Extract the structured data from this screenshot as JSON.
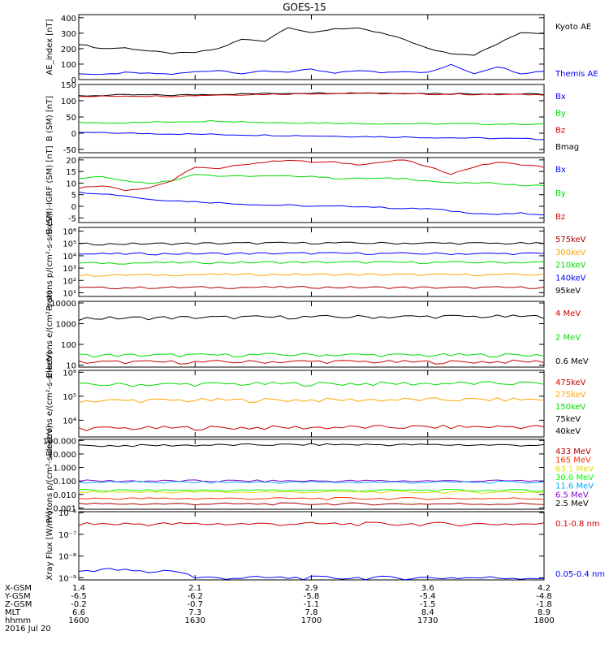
{
  "title": "GOES-15",
  "colors": {
    "black": "#000000",
    "blue": "#0000ff",
    "green": "#00dd00",
    "red": "#cc0000",
    "orange": "#ffa500",
    "cyan": "#00aaff",
    "purple": "#8800cc",
    "yellow": "#dddd00",
    "lime": "#00ff00",
    "darkred": "#aa0000"
  },
  "chart_data": [
    {
      "type": "line",
      "ylabel": "AE_index [nT]",
      "ylim": [
        0,
        420
      ],
      "yticks": [
        "400",
        "300",
        "200",
        "100",
        "0"
      ],
      "legend": [
        "Kyoto AE",
        "Themis AE"
      ],
      "x": [
        0,
        0.05,
        0.1,
        0.15,
        0.2,
        0.25,
        0.3,
        0.35,
        0.4,
        0.45,
        0.5,
        0.55,
        0.6,
        0.65,
        0.7,
        0.75,
        0.8,
        0.85,
        0.9,
        0.95,
        1.0
      ],
      "series": [
        {
          "name": "Kyoto AE",
          "color": "#000000",
          "values": [
            230,
            200,
            205,
            185,
            170,
            175,
            200,
            260,
            250,
            340,
            300,
            330,
            330,
            300,
            260,
            200,
            170,
            160,
            230,
            305,
            300
          ]
        },
        {
          "name": "Themis AE",
          "color": "#0000ff",
          "values": [
            40,
            30,
            45,
            40,
            35,
            50,
            60,
            40,
            55,
            50,
            65,
            40,
            60,
            45,
            55,
            45,
            95,
            40,
            85,
            40,
            55
          ]
        }
      ]
    },
    {
      "type": "line",
      "ylabel": "B (SM) [nT]",
      "ylim": [
        -60,
        150
      ],
      "yticks": [
        "150",
        "100",
        "50",
        "0",
        "-50"
      ],
      "legend": [
        "Bx",
        "By",
        "Bz",
        "Bmag"
      ],
      "x": [
        0,
        0.1,
        0.2,
        0.3,
        0.4,
        0.5,
        0.6,
        0.7,
        0.8,
        0.9,
        1.0
      ],
      "series": [
        {
          "name": "Bmag",
          "color": "#000000",
          "values": [
            115,
            118,
            117,
            120,
            122,
            124,
            124,
            123,
            122,
            121,
            120
          ]
        },
        {
          "name": "Bx",
          "color": "#0000ff",
          "values": [
            2,
            0,
            -2,
            -4,
            -6,
            -8,
            -10,
            -12,
            -14,
            -16,
            -18
          ]
        },
        {
          "name": "By",
          "color": "#00dd00",
          "values": [
            33,
            32,
            35,
            38,
            33,
            32,
            30,
            29,
            29,
            28,
            28
          ]
        },
        {
          "name": "Bz",
          "color": "#cc0000",
          "values": [
            112,
            115,
            114,
            118,
            120,
            122,
            123,
            121,
            120,
            119,
            119
          ]
        }
      ]
    },
    {
      "type": "line",
      "ylabel": "B (SM)-IGRF (SM) [nT]",
      "ylim": [
        -7,
        21
      ],
      "yticks": [
        "20",
        "15",
        "10",
        "5",
        "0",
        "-5"
      ],
      "legend": [
        "Bx",
        "By",
        "Bz"
      ],
      "x": [
        0,
        0.05,
        0.1,
        0.15,
        0.2,
        0.25,
        0.3,
        0.35,
        0.4,
        0.45,
        0.5,
        0.55,
        0.6,
        0.65,
        0.7,
        0.75,
        0.8,
        0.85,
        0.9,
        0.95,
        1.0
      ],
      "series": [
        {
          "name": "Bx",
          "color": "#0000ff",
          "values": [
            6,
            5.5,
            4.5,
            3,
            2.5,
            2,
            1.5,
            1,
            0.5,
            0.5,
            0,
            0,
            0,
            -0.5,
            -1,
            -1,
            -2,
            -3,
            -3.5,
            -3,
            -4
          ]
        },
        {
          "name": "By",
          "color": "#00dd00",
          "values": [
            12,
            13,
            11,
            10,
            11,
            14,
            13,
            13,
            13,
            13,
            13,
            12,
            12,
            12,
            12,
            11,
            10,
            10,
            10,
            9,
            9
          ]
        },
        {
          "name": "Bz",
          "color": "#cc0000",
          "values": [
            8,
            9,
            7,
            8,
            11,
            17,
            16,
            18,
            19,
            20,
            19,
            19,
            18,
            19,
            20,
            17,
            14,
            17,
            19,
            18,
            17
          ]
        }
      ]
    },
    {
      "type": "line",
      "ylabel": "Protons p/(cm²-s-sr-keV)",
      "scale": "log",
      "ylim": [
        5,
        2000000
      ],
      "yticks": [
        "10⁶",
        "10⁵",
        "10⁴",
        "10³",
        "10²",
        "10¹"
      ],
      "legend": [
        "575keV",
        "300keV",
        "210keV",
        "140keV",
        "95keV"
      ],
      "x": [
        0,
        0.25,
        0.5,
        0.75,
        1.0
      ],
      "series": [
        {
          "name": "575keV",
          "color": "#aa0000",
          "values": [
            25,
            27,
            28,
            26,
            27
          ]
        },
        {
          "name": "300keV",
          "color": "#ffa500",
          "values": [
            250,
            300,
            310,
            290,
            300
          ]
        },
        {
          "name": "210keV",
          "color": "#00dd00",
          "values": [
            2500,
            2800,
            3000,
            2900,
            3000
          ]
        },
        {
          "name": "140keV",
          "color": "#0000ff",
          "values": [
            14000,
            15000,
            16000,
            15000,
            15000
          ]
        },
        {
          "name": "95keV",
          "color": "#000000",
          "values": [
            90000,
            100000,
            110000,
            105000,
            100000
          ]
        }
      ]
    },
    {
      "type": "line",
      "ylabel": "Electrons e/(cm²-s-sr)",
      "scale": "log",
      "ylim": [
        8,
        12000
      ],
      "yticks": [
        "10000",
        "1000",
        "100",
        "10"
      ],
      "legend": [
        "4 MeV",
        "2 MeV",
        "0.6 MeV"
      ],
      "x": [
        0,
        0.25,
        0.5,
        0.75,
        1.0
      ],
      "series": [
        {
          "name": "0.6 MeV",
          "color": "#000000",
          "values": [
            1800,
            2000,
            2100,
            2200,
            2200
          ]
        },
        {
          "name": "2 MeV",
          "color": "#00dd00",
          "values": [
            30,
            30,
            32,
            30,
            31
          ]
        },
        {
          "name": "4 MeV",
          "color": "#cc0000",
          "values": [
            14,
            14,
            15,
            14,
            15
          ]
        }
      ]
    },
    {
      "type": "line",
      "ylabel": "Electrons e/(cm²-s-sr-keV)",
      "scale": "log",
      "ylim": [
        2000,
        1200000
      ],
      "yticks": [
        "10⁶",
        "10⁵",
        "10⁴"
      ],
      "legend": [
        "475keV",
        "275keV",
        "150keV",
        "75keV",
        "40keV"
      ],
      "x": [
        0,
        0.25,
        0.5,
        0.75,
        1.0
      ],
      "series": [
        {
          "name": "150keV",
          "color": "#00dd00",
          "values": [
            300000,
            320000,
            330000,
            340000,
            350000
          ]
        },
        {
          "name": "275keV",
          "color": "#ffa500",
          "values": [
            65000,
            68000,
            70000,
            72000,
            73000
          ]
        },
        {
          "name": "475keV",
          "color": "#cc0000",
          "values": [
            4500,
            4800,
            5000,
            5200,
            5400
          ]
        }
      ]
    },
    {
      "type": "line",
      "ylabel": "Protons p/(cm²-s-sr-keV)",
      "scale": "log",
      "ylim": [
        0.0008,
        120
      ],
      "yticks": [
        "100.000",
        "10.000",
        "1.000",
        "0.100",
        "0.010",
        "0.001"
      ],
      "legend": [
        "433 MeV",
        "165 MeV",
        "63.1 MeV",
        "30.6 MeV",
        "11.6 MeV",
        "6.5 MeV",
        "2.5 MeV"
      ],
      "x": [
        0,
        0.25,
        0.5,
        0.75,
        1.0
      ],
      "series": [
        {
          "name": "2.5 MeV",
          "color": "#000000",
          "values": [
            40,
            45,
            50,
            48,
            45
          ]
        },
        {
          "name": "6.5 MeV",
          "color": "#8800cc",
          "values": [
            0.1,
            0.1,
            0.1,
            0.1,
            0.1
          ]
        },
        {
          "name": "11.6 MeV",
          "color": "#00aaff",
          "values": [
            0.08,
            0.08,
            0.08,
            0.08,
            0.08
          ]
        },
        {
          "name": "30.6 MeV",
          "color": "#00ff00",
          "values": [
            0.02,
            0.02,
            0.02,
            0.02,
            0.02
          ]
        },
        {
          "name": "63.1 MeV",
          "color": "#dddd00",
          "values": [
            0.015,
            0.015,
            0.015,
            0.015,
            0.015
          ]
        },
        {
          "name": "165 MeV",
          "color": "#ff3300",
          "values": [
            0.005,
            0.005,
            0.005,
            0.005,
            0.005
          ]
        },
        {
          "name": "433 MeV",
          "color": "#aa0000",
          "values": [
            0.002,
            0.002,
            0.002,
            0.002,
            0.002
          ]
        }
      ]
    },
    {
      "type": "line",
      "ylabel": "Xray Flux [W/m²]",
      "scale": "log",
      "ylim": [
        8e-10,
        1.1e-06
      ],
      "yticks": [
        "10⁻⁶",
        "10⁻⁷",
        "10⁻⁸",
        "10⁻⁹"
      ],
      "legend": [
        "0.1-0.8 nm",
        "0.05-0.4 nm"
      ],
      "x": [
        0,
        0.05,
        0.1,
        0.15,
        0.2,
        0.25,
        0.3,
        0.5,
        0.7,
        1.0
      ],
      "series": [
        {
          "name": "0.1-0.8 nm",
          "color": "#cc0000",
          "values": [
            3e-07,
            3e-07,
            3e-07,
            3e-07,
            3e-07,
            3e-07,
            3e-07,
            3e-07,
            3e-07,
            3e-07
          ]
        },
        {
          "name": "0.05-0.4 nm",
          "color": "#0000ff",
          "values": [
            2e-09,
            2.5e-09,
            2.2e-09,
            1.8e-09,
            2.3e-09,
            1e-09,
            1e-09,
            1e-09,
            1e-09,
            1e-09
          ]
        }
      ]
    }
  ],
  "x_axis": {
    "rows": [
      {
        "label": "X-GSM",
        "values": [
          "1.4",
          "2.1",
          "2.9",
          "3.6",
          "4.2"
        ]
      },
      {
        "label": "Y-GSM",
        "values": [
          "-6.5",
          "-6.2",
          "-5.8",
          "-5.4",
          "-4.8"
        ]
      },
      {
        "label": "Z-GSM",
        "values": [
          "-0.2",
          "-0.7",
          "-1.1",
          "-1.5",
          "-1.8"
        ]
      },
      {
        "label": "MLT",
        "values": [
          "6.6",
          "7.3",
          "7.8",
          "8.4",
          "8.9"
        ]
      },
      {
        "label": "hhmm",
        "values": [
          "1600",
          "1630",
          "1700",
          "1730",
          "1800"
        ]
      }
    ],
    "date": "2016 Jul 20"
  }
}
